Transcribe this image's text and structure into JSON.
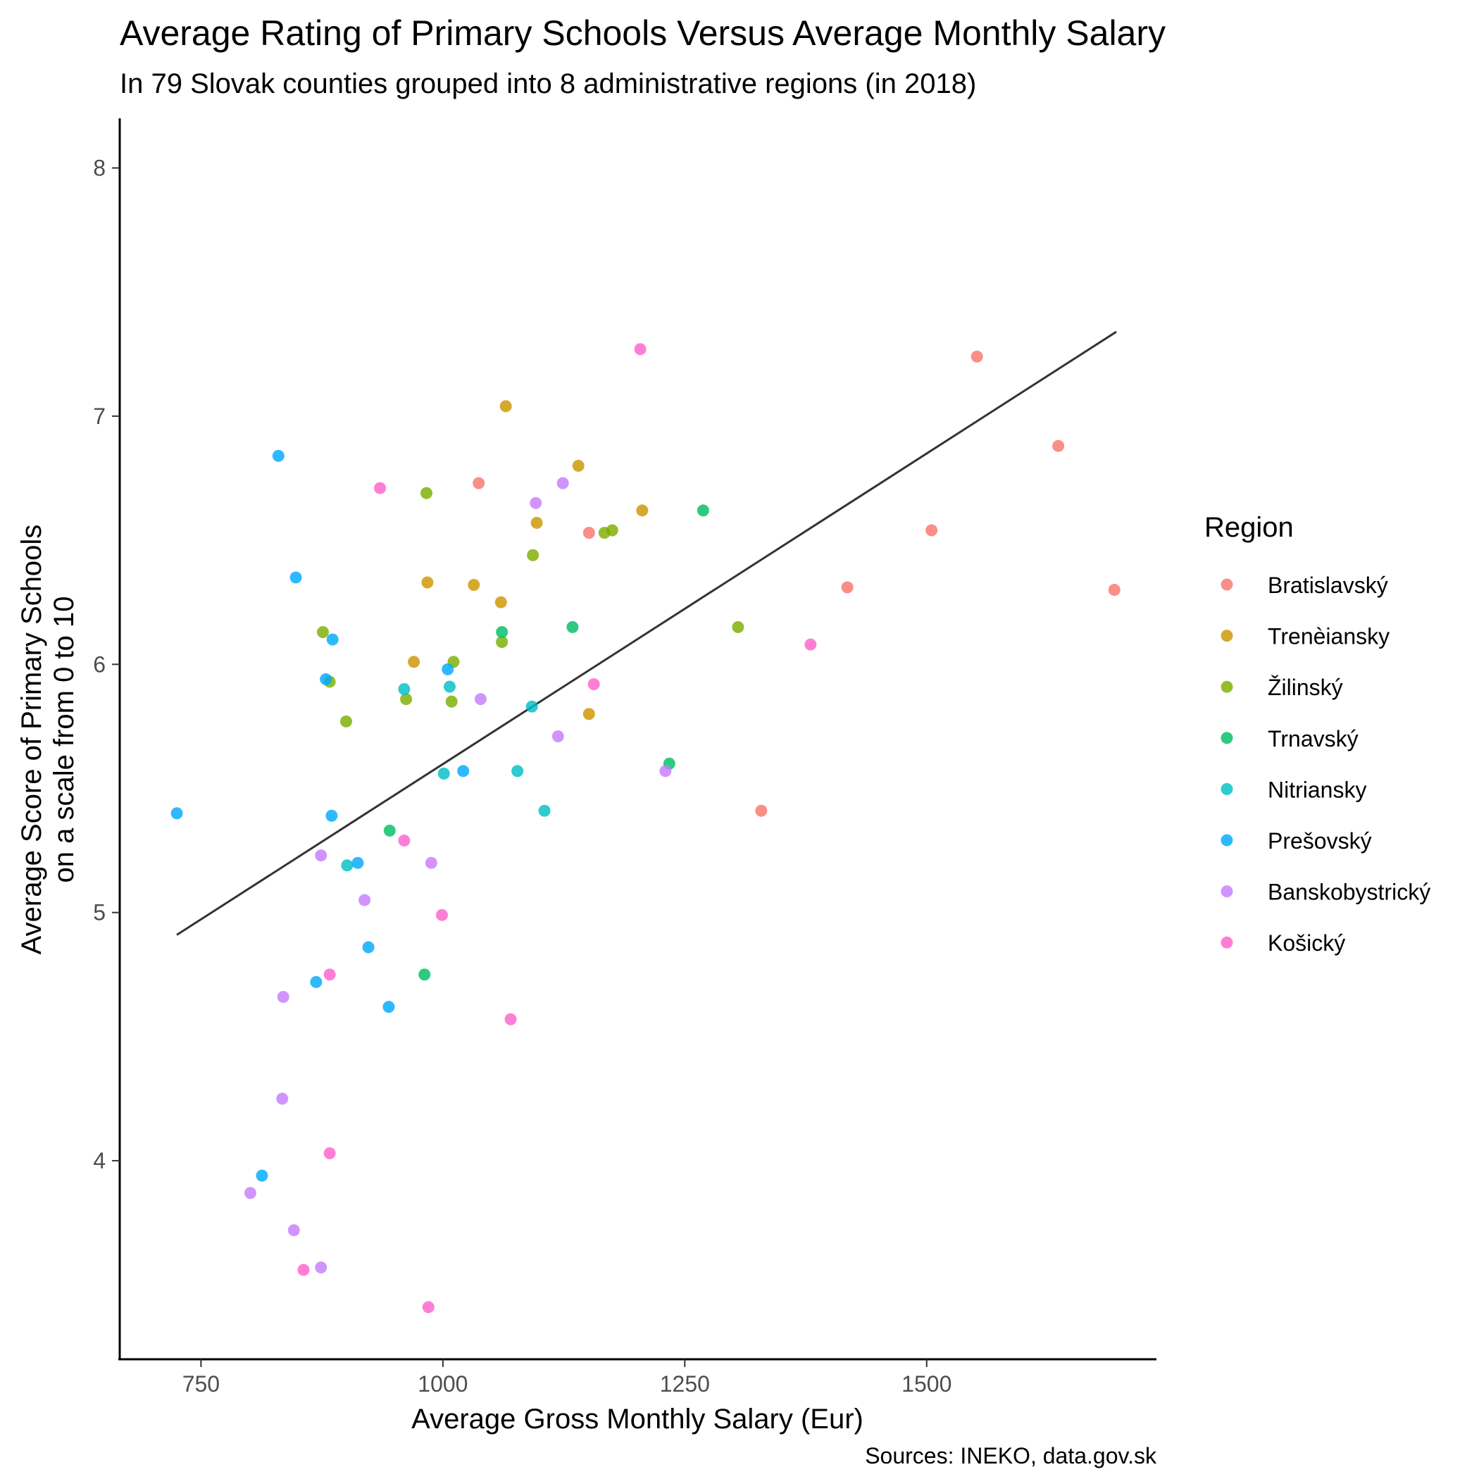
{
  "chart_data": {
    "type": "scatter",
    "title": "Average Rating of Primary Schools Versus Average Monthly Salary",
    "subtitle": "In 79 Slovak counties grouped into 8 administrative regions (in 2018)",
    "xlabel": "Average Gross Monthly Salary (Eur)",
    "ylabel_line1": "Average Score of Primary Schools",
    "ylabel_line2": "on a scale from 0 to 10",
    "caption": "Sources: INEKO, data.gov.sk",
    "xlim": [
      666,
      1736
    ],
    "ylim": [
      3.2,
      8.2
    ],
    "x_ticks": [
      750,
      1000,
      1250,
      1500
    ],
    "y_ticks": [
      4,
      5,
      6,
      7,
      8
    ],
    "grid": false,
    "legend": {
      "title": "Region",
      "position": "right"
    },
    "trend_line": {
      "x": [
        725,
        1696
      ],
      "y": [
        4.91,
        7.34
      ],
      "color": "#333333"
    },
    "series": [
      {
        "name": "Bratislavský",
        "color": "#F8766D",
        "points": [
          [
            1552,
            7.24
          ],
          [
            1636,
            6.88
          ],
          [
            1037,
            6.73
          ],
          [
            1151,
            6.53
          ],
          [
            1505,
            6.54
          ],
          [
            1418,
            6.31
          ],
          [
            1694,
            6.3
          ],
          [
            1329,
            5.41
          ]
        ]
      },
      {
        "name": "Trenèiansky",
        "color": "#CD9600",
        "points": [
          [
            1065,
            7.04
          ],
          [
            1140,
            6.8
          ],
          [
            1206,
            6.62
          ],
          [
            1097,
            6.57
          ],
          [
            984,
            6.33
          ],
          [
            1032,
            6.32
          ],
          [
            1060,
            6.25
          ],
          [
            970,
            6.01
          ],
          [
            1151,
            5.8
          ]
        ]
      },
      {
        "name": "Žilinský",
        "color": "#7CAE00",
        "points": [
          [
            983,
            6.69
          ],
          [
            1167,
            6.53
          ],
          [
            1175,
            6.54
          ],
          [
            1093,
            6.44
          ],
          [
            876,
            6.13
          ],
          [
            1305,
            6.15
          ],
          [
            1061,
            6.09
          ],
          [
            1011,
            6.01
          ],
          [
            883,
            5.93
          ],
          [
            962,
            5.86
          ],
          [
            1009,
            5.85
          ],
          [
            900,
            5.77
          ]
        ]
      },
      {
        "name": "Trnavský",
        "color": "#00BE67",
        "points": [
          [
            1269,
            6.62
          ],
          [
            1134,
            6.15
          ],
          [
            1061,
            6.13
          ],
          [
            1234,
            5.6
          ],
          [
            945,
            5.33
          ],
          [
            981,
            4.75
          ]
        ]
      },
      {
        "name": "Nitriansky",
        "color": "#00BFC4",
        "points": [
          [
            960,
            5.9
          ],
          [
            1007,
            5.91
          ],
          [
            1092,
            5.83
          ],
          [
            1001,
            5.56
          ],
          [
            1077,
            5.57
          ],
          [
            1105,
            5.41
          ],
          [
            901,
            5.19
          ]
        ]
      },
      {
        "name": "Prešovský",
        "color": "#00A9FF",
        "points": [
          [
            830,
            6.84
          ],
          [
            848,
            6.35
          ],
          [
            886,
            6.1
          ],
          [
            879,
            5.94
          ],
          [
            1005,
            5.98
          ],
          [
            1021,
            5.57
          ],
          [
            725,
            5.4
          ],
          [
            885,
            5.39
          ],
          [
            912,
            5.2
          ],
          [
            923,
            4.86
          ],
          [
            869,
            4.72
          ],
          [
            944,
            4.62
          ],
          [
            813,
            3.94
          ]
        ]
      },
      {
        "name": "Banskobystrický",
        "color": "#C77CFF",
        "points": [
          [
            1124,
            6.73
          ],
          [
            1096,
            6.65
          ],
          [
            1039,
            5.86
          ],
          [
            1119,
            5.71
          ],
          [
            1230,
            5.57
          ],
          [
            874,
            5.23
          ],
          [
            988,
            5.2
          ],
          [
            919,
            5.05
          ],
          [
            835,
            4.66
          ],
          [
            834,
            4.25
          ],
          [
            801,
            3.87
          ],
          [
            846,
            3.72
          ],
          [
            874,
            3.57
          ]
        ]
      },
      {
        "name": "Košický",
        "color": "#FF61CC",
        "points": [
          [
            1204,
            7.27
          ],
          [
            935,
            6.71
          ],
          [
            1156,
            5.92
          ],
          [
            1380,
            6.08
          ],
          [
            960,
            5.29
          ],
          [
            999,
            4.99
          ],
          [
            883,
            4.75
          ],
          [
            1070,
            4.57
          ],
          [
            883,
            4.03
          ],
          [
            856,
            3.56
          ],
          [
            985,
            3.41
          ]
        ]
      }
    ]
  }
}
